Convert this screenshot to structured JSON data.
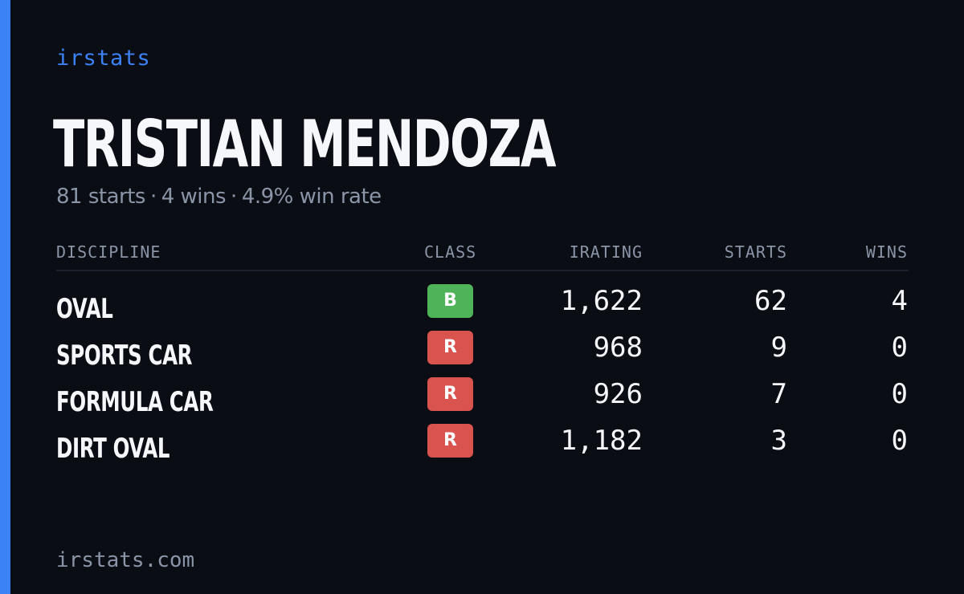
{
  "brand": "irstats",
  "player": {
    "name": "TRISTIAN MENDOZA",
    "starts_text": "81 starts",
    "wins_text": "4 wins",
    "win_rate_text": "4.9% win rate",
    "separator": "·"
  },
  "table": {
    "headers": {
      "discipline": "DISCIPLINE",
      "class": "CLASS",
      "irating": "IRATING",
      "starts": "STARTS",
      "wins": "WINS"
    },
    "rows": [
      {
        "discipline": "OVAL",
        "class": "B",
        "class_color": "#4fb35a",
        "irating": "1,622",
        "starts": "62",
        "wins": "4"
      },
      {
        "discipline": "SPORTS CAR",
        "class": "R",
        "class_color": "#d9534f",
        "irating": "968",
        "starts": "9",
        "wins": "0"
      },
      {
        "discipline": "FORMULA CAR",
        "class": "R",
        "class_color": "#d9534f",
        "irating": "926",
        "starts": "7",
        "wins": "0"
      },
      {
        "discipline": "DIRT OVAL",
        "class": "R",
        "class_color": "#d9534f",
        "irating": "1,182",
        "starts": "3",
        "wins": "0"
      }
    ]
  },
  "footer": "irstats.com",
  "colors": {
    "accent": "#3b82f6",
    "background": "#0a0d14",
    "muted_text": "#8a95a8"
  }
}
